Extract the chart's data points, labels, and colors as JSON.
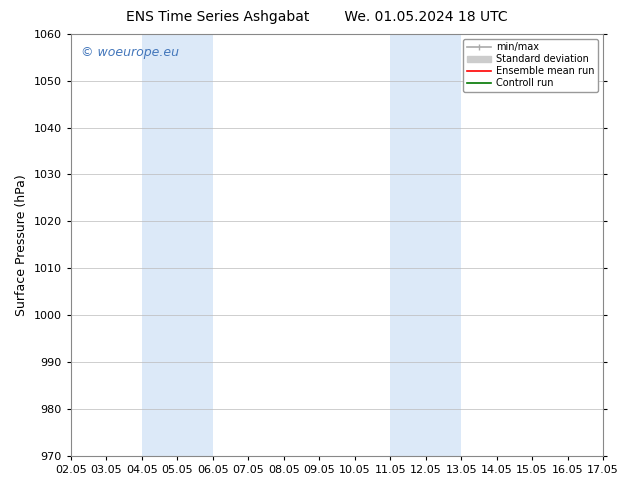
{
  "title_left": "ENS Time Series Ashgabat",
  "title_right": "We. 01.05.2024 18 UTC",
  "ylabel": "Surface Pressure (hPa)",
  "ylim": [
    970,
    1060
  ],
  "yticks": [
    970,
    980,
    990,
    1000,
    1010,
    1020,
    1030,
    1040,
    1050,
    1060
  ],
  "xtick_labels": [
    "02.05",
    "03.05",
    "04.05",
    "05.05",
    "06.05",
    "07.05",
    "08.05",
    "09.05",
    "10.05",
    "11.05",
    "12.05",
    "13.05",
    "14.05",
    "15.05",
    "16.05",
    "17.05"
  ],
  "xtick_positions": [
    0,
    1,
    2,
    3,
    4,
    5,
    6,
    7,
    8,
    9,
    10,
    11,
    12,
    13,
    14,
    15
  ],
  "shade_bands": [
    {
      "x_start": 2,
      "x_end": 4,
      "color": "#dce9f8"
    },
    {
      "x_start": 9,
      "x_end": 11,
      "color": "#dce9f8"
    }
  ],
  "watermark": "© woeurope.eu",
  "watermark_color": "#4477bb",
  "background_color": "#ffffff",
  "grid_color": "#bbbbbb",
  "title_fontsize": 10,
  "label_fontsize": 9,
  "tick_fontsize": 8,
  "watermark_fontsize": 9,
  "legend_items": [
    {
      "label": "min/max",
      "color": "#aaaaaa",
      "lw": 1.2
    },
    {
      "label": "Standard deviation",
      "color": "#cccccc",
      "lw": 6
    },
    {
      "label": "Ensemble mean run",
      "color": "#ff0000",
      "lw": 1.2
    },
    {
      "label": "Controll run",
      "color": "#007700",
      "lw": 1.2
    }
  ]
}
